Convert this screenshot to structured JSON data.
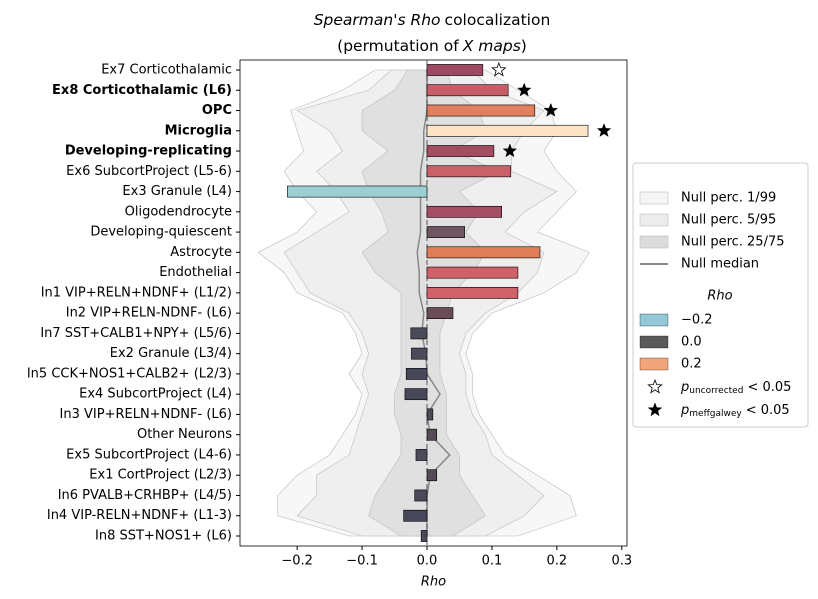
{
  "chart_data": {
    "type": "bar",
    "orientation": "horizontal",
    "title_lines": [
      [
        {
          "text": "Spearman's Rho",
          "italic": true
        },
        {
          "text": "colocalization",
          "italic": false
        }
      ],
      [
        {
          "text": "(permutation of",
          "italic": false
        },
        {
          "text": "X maps",
          "italic": true
        },
        {
          "text": ")",
          "italic": false
        }
      ]
    ],
    "xlabel": "Rho",
    "xlim": [
      -0.288,
      0.308
    ],
    "xticks": [
      {
        "value": -0.2,
        "label": "−0.2"
      },
      {
        "value": -0.1,
        "label": "−0.1"
      },
      {
        "value": 0,
        "label": "0.0"
      },
      0.1,
      0.2,
      0.3
    ],
    "categories": [
      "Ex7 Corticothalamic",
      "Ex8 Corticothalamic (L6)",
      "OPC",
      "Microglia",
      "Developing-replicating",
      "Ex6 SubcortProject (L5-6)",
      "Ex3 Granule (L4)",
      "Oligodendrocyte",
      "Developing-quiescent",
      "Astrocyte",
      "Endothelial",
      "In1 VIP+RELN+NDNF+ (L1/2)",
      "In2 VIP+RELN-NDNF- (L6)",
      "In7 SST+CALB1+NPY+ (L5/6)",
      "Ex2 Granule (L3/4)",
      "In5 CCK+NOS1+CALB2+ (L2/3)",
      "Ex4 SubcortProject (L4)",
      "In3 VIP+RELN+NDNF- (L6)",
      "Other Neurons",
      "Ex5 SubcortProject (L4-6)",
      "Ex1 CortProject (L2/3)",
      "In6 PVALB+CRHBP+ (L4/5)",
      "In4 VIP-RELN+NDNF+ (L1-3)",
      "In8 SST+NOS1+ (L6)"
    ],
    "values": [
      0.086,
      0.125,
      0.166,
      0.248,
      0.103,
      0.129,
      -0.215,
      0.115,
      0.058,
      0.174,
      0.14,
      0.14,
      0.04,
      -0.025,
      -0.024,
      -0.032,
      -0.034,
      0.009,
      0.015,
      -0.017,
      0.015,
      -0.019,
      -0.036,
      -0.009
    ],
    "colors": [
      "#9c4a62",
      "#c65e68",
      "#e2805e",
      "#fde3c6",
      "#a44c60",
      "#c9606a",
      "#9ccfd4",
      "#a64e64",
      "#6f5461",
      "#df7f5a",
      "#ce6268",
      "#ce6268",
      "#6b4d59",
      "#4a4a5a",
      "#4b4a59",
      "#48485a",
      "#47485a",
      "#4d4a53",
      "#534b55",
      "#4a4a58",
      "#534b55",
      "#4a4a58",
      "#46485a",
      "#4d4a55"
    ],
    "markers": [
      "open",
      "filled",
      "filled",
      "filled",
      "filled",
      null,
      null,
      null,
      null,
      null,
      null,
      null,
      null,
      null,
      null,
      null,
      null,
      null,
      null,
      null,
      null,
      null,
      null,
      null
    ],
    "null_bands": [
      {
        "name": "Null perc. 1/99",
        "color": "#f5f5f5",
        "lower": [
          -0.08,
          -0.13,
          -0.21,
          -0.2,
          -0.19,
          -0.22,
          -0.2,
          -0.17,
          -0.2,
          -0.26,
          -0.22,
          -0.2,
          -0.13,
          -0.11,
          -0.1,
          -0.12,
          -0.1,
          -0.11,
          -0.13,
          -0.15,
          -0.2,
          -0.23,
          -0.23,
          -0.12
        ],
        "upper": [
          0.09,
          0.14,
          0.19,
          0.2,
          0.18,
          0.2,
          0.23,
          0.2,
          0.17,
          0.25,
          0.23,
          0.18,
          0.1,
          0.07,
          0.06,
          0.07,
          0.07,
          0.08,
          0.1,
          0.12,
          0.17,
          0.22,
          0.23,
          0.14
        ]
      },
      {
        "name": "Null perc. 5/95",
        "color": "#ececec",
        "lower": [
          -0.055,
          -0.09,
          -0.2,
          -0.15,
          -0.13,
          -0.17,
          -0.14,
          -0.12,
          -0.17,
          -0.22,
          -0.2,
          -0.18,
          -0.12,
          -0.1,
          -0.09,
          -0.1,
          -0.09,
          -0.1,
          -0.11,
          -0.12,
          -0.17,
          -0.17,
          -0.2,
          -0.1
        ],
        "upper": [
          0.07,
          0.1,
          0.18,
          0.15,
          0.13,
          0.13,
          0.2,
          0.15,
          0.12,
          0.18,
          0.17,
          0.14,
          0.09,
          0.06,
          0.05,
          0.06,
          0.06,
          0.07,
          0.09,
          0.1,
          0.14,
          0.18,
          0.15,
          0.09
        ]
      },
      {
        "name": "Null perc. 25/75",
        "color": "#dcdcdc",
        "lower": [
          -0.03,
          -0.05,
          -0.1,
          -0.1,
          -0.06,
          -0.1,
          -0.09,
          -0.07,
          -0.06,
          -0.1,
          -0.08,
          -0.04,
          -0.04,
          -0.04,
          -0.04,
          -0.04,
          -0.05,
          -0.05,
          -0.04,
          -0.04,
          -0.06,
          -0.08,
          -0.09,
          -0.04
        ],
        "upper": [
          0.03,
          0.04,
          0.08,
          0.09,
          0.04,
          0.11,
          0.05,
          0.08,
          0.06,
          0.09,
          0.07,
          0.04,
          0.03,
          0.02,
          0.02,
          0.02,
          0.03,
          0.03,
          0.03,
          0.05,
          0.05,
          0.07,
          0.09,
          0.04
        ]
      }
    ],
    "null_median": {
      "name": "Null median",
      "color": "#888888",
      "values": [
        0.0,
        0.0,
        0.0,
        -0.005,
        -0.005,
        -0.01,
        -0.01,
        -0.01,
        -0.01,
        -0.015,
        -0.012,
        -0.012,
        -0.005,
        -0.008,
        -0.002,
        0.0,
        0.02,
        0.0,
        0.005,
        0.035,
        0.005,
        0.0,
        0.0,
        0.0
      ]
    },
    "rho_legend": {
      "title": "Rho",
      "items": [
        {
          "value": -0.2,
          "label": "−0.2",
          "color": "#93c8d6"
        },
        {
          "value": 0,
          "label": "0.0",
          "color": "#5a5a5a"
        },
        {
          "value": 0.2,
          "label": "0.2",
          "color": "#f2a57a"
        }
      ]
    },
    "marker_legend": [
      {
        "marker": "open",
        "symbol": "p",
        "subscript": "uncorrected",
        "text": "< 0.05"
      },
      {
        "marker": "filled",
        "symbol": "p",
        "subscript": "meffgalwey",
        "text": "< 0.05"
      }
    ]
  }
}
